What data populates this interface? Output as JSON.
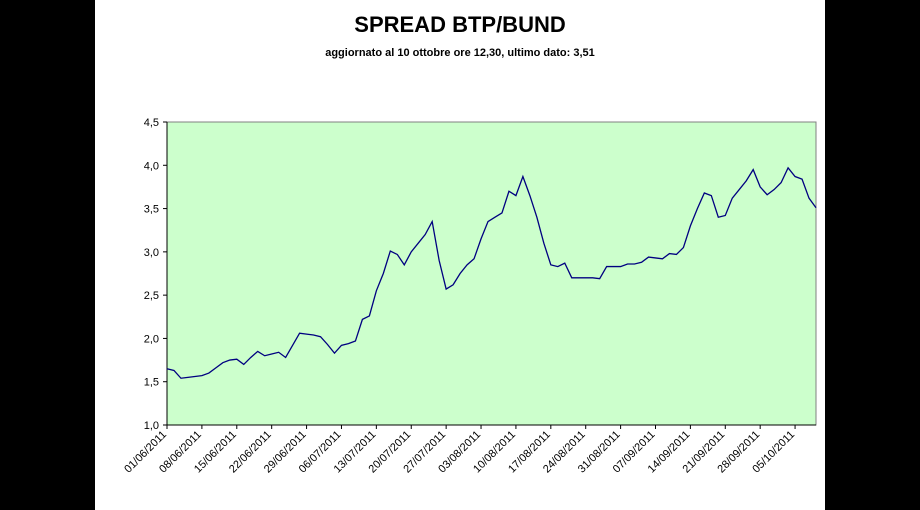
{
  "chart_data": {
    "type": "line",
    "title": "SPREAD BTP/BUND",
    "subtitle": "aggiornato al 10 ottobre ore 12,30, ultimo dato: 3,51",
    "categories": [
      "01/06/2011",
      null,
      null,
      null,
      null,
      "08/06/2011",
      null,
      null,
      null,
      null,
      "15/06/2011",
      null,
      null,
      null,
      null,
      "22/06/2011",
      null,
      null,
      null,
      null,
      "29/06/2011",
      null,
      null,
      null,
      null,
      "06/07/2011",
      null,
      null,
      null,
      null,
      "13/07/2011",
      null,
      null,
      null,
      null,
      "20/07/2011",
      null,
      null,
      null,
      null,
      "27/07/2011",
      null,
      null,
      null,
      null,
      "03/08/2011",
      null,
      null,
      null,
      null,
      "10/08/2011",
      null,
      null,
      null,
      null,
      "17/08/2011",
      null,
      null,
      null,
      null,
      "24/08/2011",
      null,
      null,
      null,
      null,
      "31/08/2011",
      null,
      null,
      null,
      null,
      "07/09/2011",
      null,
      null,
      null,
      null,
      "14/09/2011",
      null,
      null,
      null,
      null,
      "21/09/2011",
      null,
      null,
      null,
      null,
      "28/09/2011",
      null,
      null,
      null,
      null,
      "05/10/2011",
      null,
      null,
      null
    ],
    "series": [
      {
        "name": "Spread",
        "color": "#000080",
        "values": [
          1.65,
          1.63,
          1.54,
          1.55,
          1.56,
          1.57,
          1.6,
          1.66,
          1.72,
          1.75,
          1.76,
          1.7,
          1.78,
          1.85,
          1.8,
          1.82,
          1.84,
          1.78,
          1.92,
          2.06,
          2.05,
          2.04,
          2.02,
          1.93,
          1.83,
          1.92,
          1.94,
          1.97,
          2.22,
          2.26,
          2.55,
          2.75,
          3.01,
          2.97,
          2.85,
          3.0,
          3.1,
          3.2,
          3.35,
          2.9,
          2.57,
          2.62,
          2.75,
          2.85,
          2.92,
          3.15,
          3.35,
          3.4,
          3.45,
          3.7,
          3.65,
          3.87,
          3.65,
          3.4,
          3.1,
          2.85,
          2.83,
          2.87,
          2.7,
          2.7,
          2.7,
          2.7,
          2.69,
          2.83,
          2.83,
          2.83,
          2.86,
          2.86,
          2.88,
          2.94,
          2.93,
          2.92,
          2.98,
          2.97,
          3.05,
          3.3,
          3.5,
          3.68,
          3.65,
          3.4,
          3.42,
          3.62,
          3.72,
          3.82,
          3.95,
          3.75,
          3.66,
          3.72,
          3.8,
          3.97,
          3.87,
          3.84,
          3.62,
          3.51
        ]
      }
    ],
    "ylim": [
      1.0,
      4.5
    ],
    "yticks": [
      {
        "value": 1.0,
        "label": "1,0"
      },
      {
        "value": 1.5,
        "label": "1,5"
      },
      {
        "value": 2.0,
        "label": "2,0"
      },
      {
        "value": 2.5,
        "label": "2,5"
      },
      {
        "value": 3.0,
        "label": "3,0"
      },
      {
        "value": 3.5,
        "label": "3,5"
      },
      {
        "value": 4.0,
        "label": "4,0"
      },
      {
        "value": 4.5,
        "label": "4,5"
      }
    ],
    "plot_background": "#ccffcc"
  }
}
